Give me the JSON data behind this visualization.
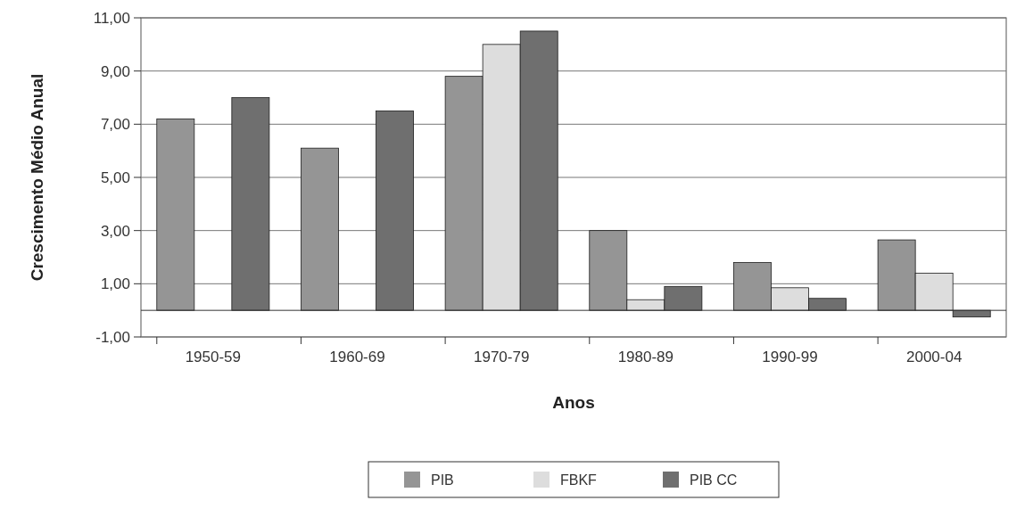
{
  "chart_data": {
    "type": "bar",
    "xlabel": "Anos",
    "ylabel": "Crescimento Médio Anual",
    "categories": [
      "1950-59",
      "1960-69",
      "1970-79",
      "1980-89",
      "1990-99",
      "2000-04"
    ],
    "series": [
      {
        "name": "PIB",
        "color": "#959595",
        "values": [
          7.2,
          6.1,
          8.8,
          3.0,
          1.8,
          2.65
        ]
      },
      {
        "name": "FBKF",
        "color": "#dddddd",
        "values": [
          0,
          0,
          10.0,
          0.4,
          0.85,
          1.4
        ]
      },
      {
        "name": "PIB CC",
        "color": "#6f6f6f",
        "values": [
          8.0,
          7.5,
          10.5,
          0.9,
          0.45,
          -0.25
        ]
      }
    ],
    "ylim": [
      -1,
      11
    ],
    "yticks": [
      {
        "value": -1,
        "label": "-1,00"
      },
      {
        "value": 1,
        "label": "1,00"
      },
      {
        "value": 3,
        "label": "3,00"
      },
      {
        "value": 5,
        "label": "5,00"
      },
      {
        "value": 7,
        "label": "7,00"
      },
      {
        "value": 9,
        "label": "9,00"
      },
      {
        "value": 11,
        "label": "11,00"
      }
    ],
    "grid": "y",
    "legend": "bottom"
  }
}
